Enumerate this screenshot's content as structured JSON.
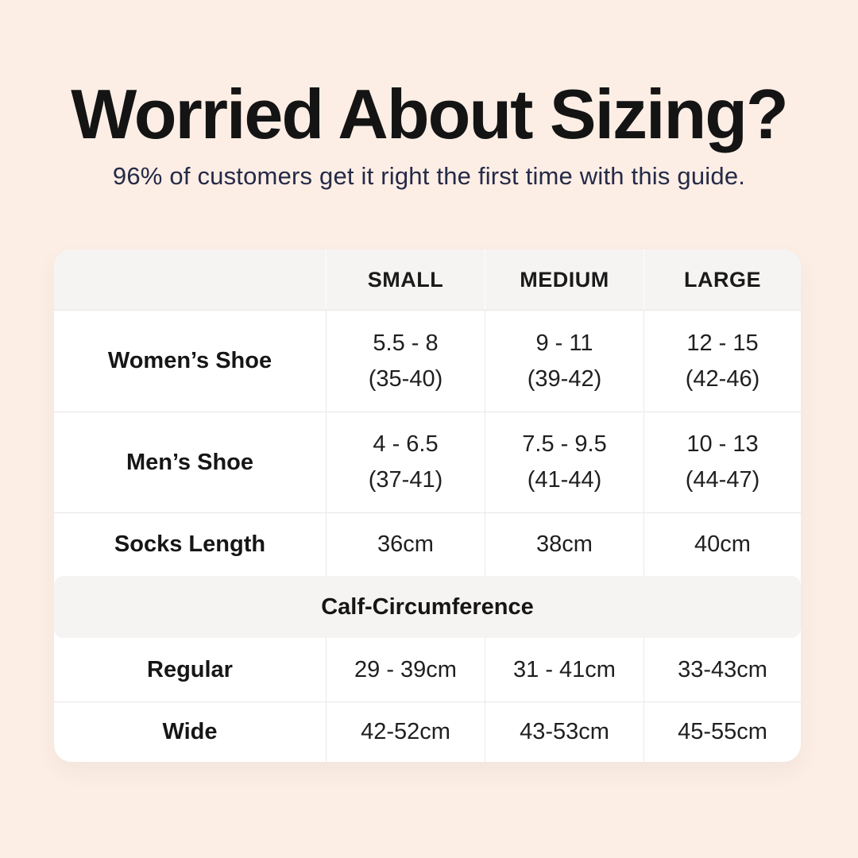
{
  "header": {
    "title": "Worried About Sizing?",
    "subtitle": "96% of customers get it right the first time with this guide."
  },
  "table": {
    "columns": [
      "SMALL",
      "MEDIUM",
      "LARGE"
    ],
    "rows": [
      {
        "label": "Women’s Shoe",
        "values": [
          [
            "5.5 - 8",
            "(35-40)"
          ],
          [
            "9 - 11",
            "(39-42)"
          ],
          [
            "12 - 15",
            "(42-46)"
          ]
        ]
      },
      {
        "label": "Men’s Shoe",
        "values": [
          [
            "4 - 6.5",
            "(37-41)"
          ],
          [
            "7.5 - 9.5",
            "(41-44)"
          ],
          [
            "10 - 13",
            "(44-47)"
          ]
        ]
      },
      {
        "label": "Socks Length",
        "values": [
          [
            "36cm"
          ],
          [
            "38cm"
          ],
          [
            "40cm"
          ]
        ]
      }
    ],
    "section_header": "Calf-Circumference",
    "section_rows": [
      {
        "label": "Regular",
        "values": [
          "29 - 39cm",
          "31 - 41cm",
          "33-43cm"
        ]
      },
      {
        "label": "Wide",
        "values": [
          "42-52cm",
          "43-53cm",
          "45-55cm"
        ]
      }
    ]
  },
  "colors": {
    "background": "#fceee5",
    "card": "#ffffff",
    "header_band": "#f5f4f2",
    "divider": "#eceae7",
    "title_text": "#141414",
    "subtitle_text": "#252a47",
    "body_text": "#1f1f1f"
  }
}
